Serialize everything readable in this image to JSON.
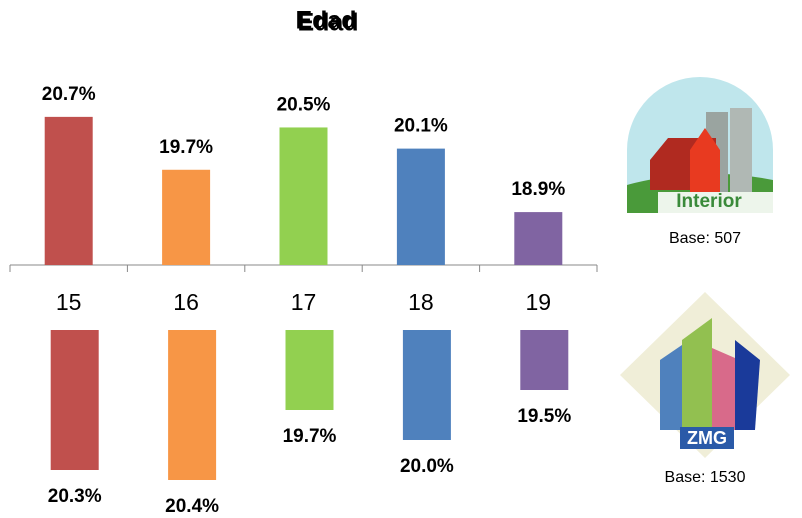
{
  "chart_data": [
    {
      "type": "bar",
      "title": "Edad",
      "name": "Interior",
      "base": "Base: 507",
      "categories": [
        "15",
        "16",
        "17",
        "18",
        "19"
      ],
      "values": [
        20.7,
        19.7,
        20.5,
        20.1,
        18.9
      ],
      "value_labels": [
        "20.7%",
        "19.7%",
        "20.5%",
        "20.1%",
        "18.9%"
      ],
      "colors": [
        "#c0504d",
        "#f79646",
        "#92d050",
        "#4f81bd",
        "#8064a2"
      ],
      "ylim": [
        17.9,
        21.0
      ],
      "reversed": false
    },
    {
      "type": "bar",
      "name": "ZMG",
      "base": "Base: 1530",
      "values": [
        20.3,
        20.4,
        19.7,
        20.0,
        19.5
      ],
      "value_labels": [
        "20.3%",
        "20.4%",
        "19.7%",
        "20.0%",
        "19.5%"
      ],
      "colors": [
        "#c0504d",
        "#f79646",
        "#92d050",
        "#4f81bd",
        "#8064a2"
      ],
      "ylim": [
        18.9,
        20.5
      ],
      "reversed": true
    }
  ]
}
